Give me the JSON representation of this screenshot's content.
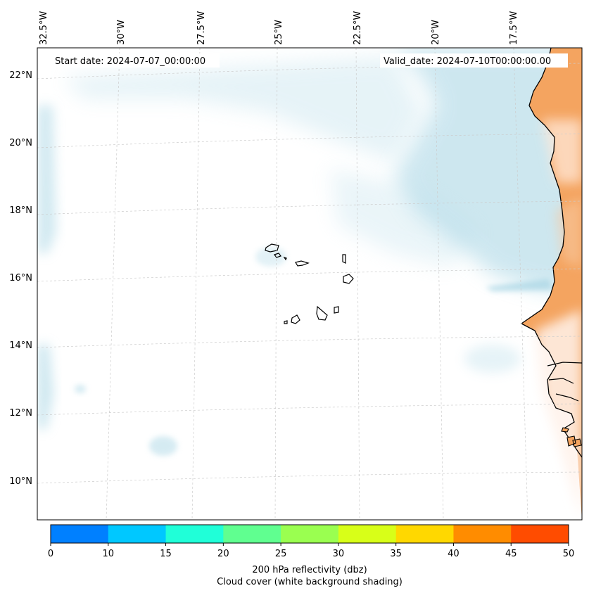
{
  "map": {
    "start_date": "Start date: 2024-07-07_00:00:00",
    "valid_date": "Valid_date: 2024-07-10T00:00:00.00",
    "longitude_labels": [
      "32.5°W",
      "30°W",
      "27.5°W",
      "25°W",
      "22.5°W",
      "20°W",
      "17.5°W"
    ],
    "latitude_labels": [
      "22°N",
      "20°N",
      "18°N",
      "16°N",
      "14°N",
      "12°N",
      "10°N"
    ]
  },
  "colorbar": {
    "ticks": [
      "0",
      "10",
      "15",
      "20",
      "25",
      "30",
      "35",
      "40",
      "45",
      "50"
    ],
    "colors": [
      "#0080ff",
      "#00c8ff",
      "#20ffd8",
      "#60ff90",
      "#9aff50",
      "#d8ff18",
      "#ffd800",
      "#ff8c00",
      "#ff4c00"
    ],
    "label_line1": "200 hPa reflectivity (dbz)",
    "label_line2": "Cloud cover (white background shading)"
  },
  "colors": {
    "cloud": "#add8e6",
    "land": "#f4a460",
    "coast": "#000000",
    "grid": "#cccccc"
  }
}
